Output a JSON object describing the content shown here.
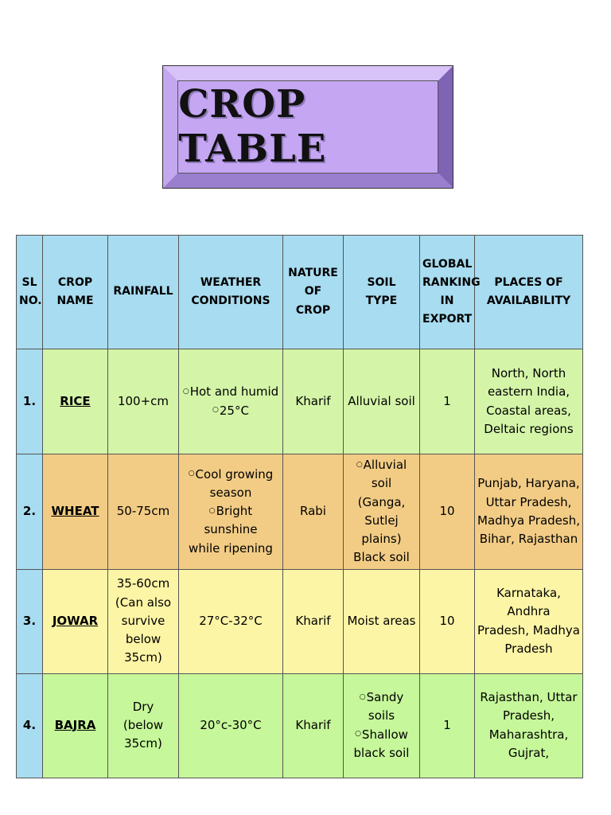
{
  "title": "CROP TABLE",
  "colors": {
    "title_face": "#c5a6f3",
    "header_bg": "#a8dcf0",
    "rice_row": "#d4f5a8",
    "wheat_row": "#f2cc85",
    "jowar_row": "#fdf5a6",
    "bajra_row": "#c6f79a"
  },
  "headers": {
    "sl": [
      "SL",
      "NO."
    ],
    "crop_name": [
      "CROP",
      "NAME"
    ],
    "rainfall": [
      "RAINFALL"
    ],
    "weather": [
      "WEATHER",
      "CONDITIONS"
    ],
    "nature": [
      "NATURE",
      "OF CROP"
    ],
    "soil": [
      "SOIL",
      "TYPE"
    ],
    "ranking": [
      "GLOBAL",
      "RANKING",
      "IN",
      "EXPORT"
    ],
    "places": [
      "PLACES OF",
      "AVAILABILITY"
    ]
  },
  "rows": [
    {
      "sl": "1.",
      "crop": "RICE",
      "rainfall": [
        "100+cm"
      ],
      "weather": [
        "Hot and humid",
        "25°C"
      ],
      "weather_bullets": [
        true,
        true
      ],
      "nature": "Kharif",
      "soil": [
        "Alluvial soil"
      ],
      "soil_bullets": [
        false
      ],
      "ranking": "1",
      "places": [
        "North, North",
        "eastern India,",
        "Coastal areas,",
        "Deltaic regions"
      ]
    },
    {
      "sl": "2.",
      "crop": "WHEAT",
      "rainfall": [
        "50-75cm"
      ],
      "weather": [
        "Cool growing",
        "season",
        "Bright sunshine",
        "while ripening"
      ],
      "weather_bullets": [
        true,
        false,
        true,
        false
      ],
      "nature": "Rabi",
      "soil": [
        "Alluvial soil",
        "(Ganga,",
        "Sutlej plains)",
        "Black soil"
      ],
      "soil_bullets": [
        true,
        false,
        false,
        false
      ],
      "ranking": "10",
      "places": [
        "Punjab, Haryana,",
        "Uttar Pradesh,",
        "Madhya Pradesh,",
        "Bihar, Rajasthan"
      ]
    },
    {
      "sl": "3.",
      "crop": "JOWAR",
      "rainfall": [
        "35-60cm",
        "(Can also",
        "survive",
        "below 35cm)"
      ],
      "weather": [
        "27°C-32°C"
      ],
      "weather_bullets": [
        false
      ],
      "nature": "Kharif",
      "soil": [
        "Moist areas"
      ],
      "soil_bullets": [
        false
      ],
      "ranking": "10",
      "places": [
        "Karnataka, Andhra",
        "Pradesh, Madhya",
        "Pradesh"
      ]
    },
    {
      "sl": "4.",
      "crop": "BAJRA",
      "rainfall": [
        "Dry",
        "(below",
        "35cm)"
      ],
      "weather": [
        "20°c-30°C"
      ],
      "weather_bullets": [
        false
      ],
      "nature": "Kharif",
      "soil": [
        "Sandy soils",
        "Shallow",
        "black soil"
      ],
      "soil_bullets": [
        true,
        true,
        false
      ],
      "ranking": "1",
      "places": [
        "Rajasthan, Uttar",
        "Pradesh,",
        "Maharashtra,",
        "Gujrat,"
      ]
    }
  ]
}
